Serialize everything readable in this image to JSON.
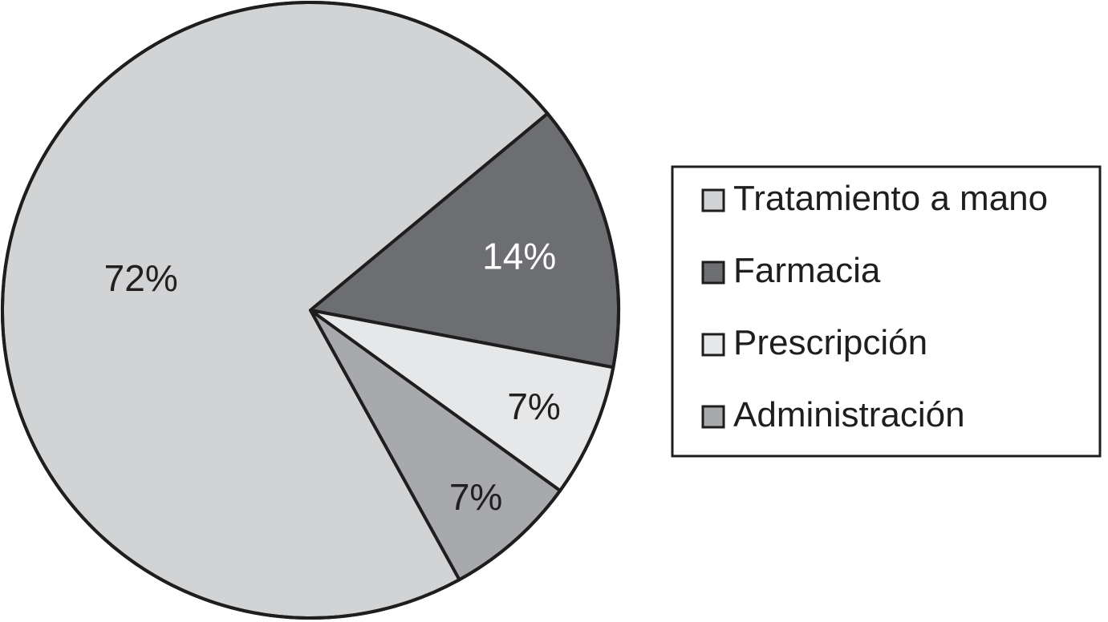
{
  "chart_data": {
    "type": "pie",
    "title": "",
    "legend_position": "right",
    "slices": [
      {
        "label": "Tratamiento a mano",
        "value": 72,
        "value_label": "72%",
        "color": "#d1d3d4",
        "label_color": "#231f20"
      },
      {
        "label": "Farmacia",
        "value": 14,
        "value_label": "14%",
        "color": "#6d6e71",
        "label_color": "#ffffff"
      },
      {
        "label": "Prescripción",
        "value": 7,
        "value_label": "7%",
        "color": "#e6e7e8",
        "label_color": "#231f20"
      },
      {
        "label": "Administración",
        "value": 7,
        "value_label": "7%",
        "color": "#a7a9ac",
        "label_color": "#231f20"
      }
    ]
  }
}
